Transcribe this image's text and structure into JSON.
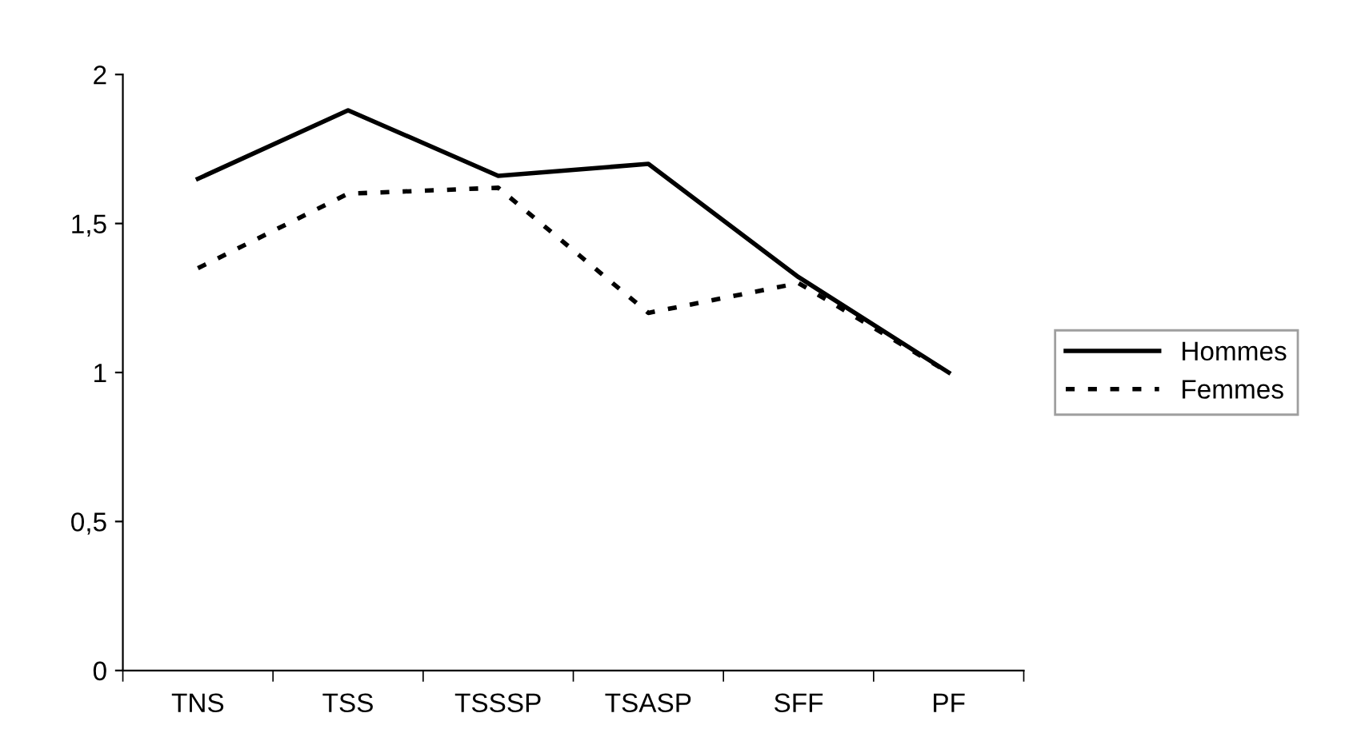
{
  "chart_data": {
    "type": "line",
    "categories": [
      "TNS",
      "TSS",
      "TSSSP",
      "TSASP",
      "SFF",
      "PF"
    ],
    "series": [
      {
        "name": "Hommes",
        "color": "#000000",
        "line_style": "solid",
        "values": [
          1.65,
          1.88,
          1.66,
          1.7,
          1.32,
          1.0
        ]
      },
      {
        "name": "Femmes",
        "color": "#000000",
        "line_style": "dotted",
        "values": [
          1.35,
          1.6,
          1.62,
          1.2,
          1.3,
          1.0
        ]
      }
    ],
    "ylim": [
      0,
      2
    ],
    "yticks": [
      0,
      {
        "value": 0.5,
        "label": "0,5"
      },
      1,
      {
        "value": 1.5,
        "label": "1,5"
      },
      2
    ],
    "grid": false,
    "legend": "right",
    "marker": "none"
  }
}
